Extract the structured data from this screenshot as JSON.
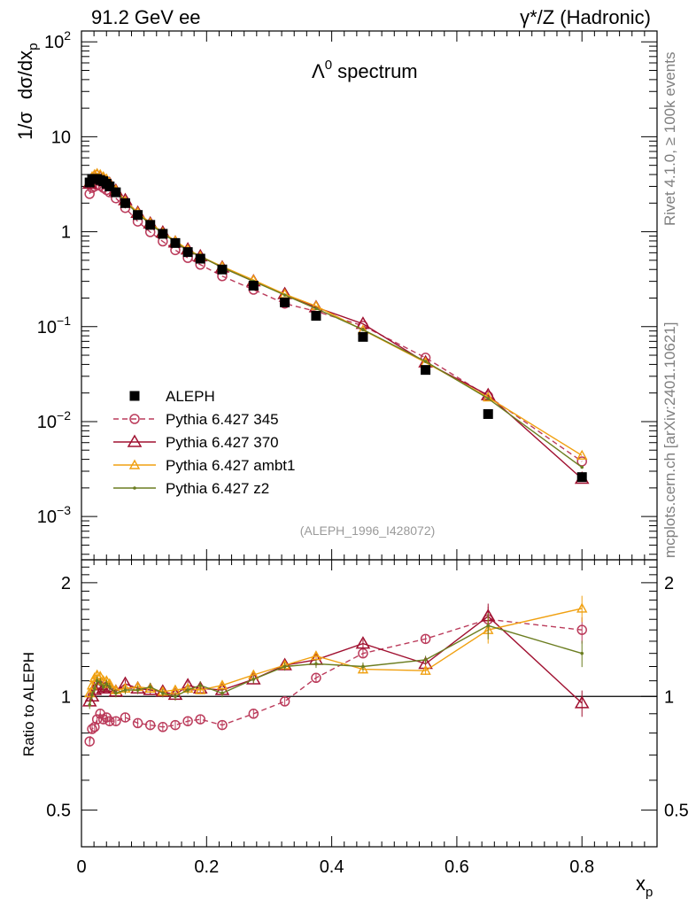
{
  "header": {
    "left": "91.2 GeV ee",
    "right": "γ*/Z (Hadronic)"
  },
  "side": {
    "rivet": "Rivet 4.1.0, ≥ 100k events",
    "mcplots": "mcplots.cern.ch [arXiv:2401.10621]"
  },
  "chart_data": {
    "type": "scatter",
    "title": "Λ0 spectrum",
    "title_main": "Λ",
    "title_sup": "0",
    "title_rest": " spectrum",
    "ylabel_parts": [
      "1/σ",
      "dσ/dx",
      "p"
    ],
    "xlabel_main": "x",
    "xlabel_sub": "p",
    "ratio_ylabel": "Ratio to ALEPH",
    "analysis_id": "(ALEPH_1996_I428072)",
    "xlim": [
      0,
      0.92
    ],
    "ylim": [
      0.00035,
      130
    ],
    "ratio_ylim": [
      0.4,
      2.3
    ],
    "x_ticks": [
      {
        "v": 0,
        "l": "0"
      },
      {
        "v": 0.2,
        "l": "0.2"
      },
      {
        "v": 0.4,
        "l": "0.4"
      },
      {
        "v": 0.6,
        "l": "0.6"
      },
      {
        "v": 0.8,
        "l": "0.8"
      }
    ],
    "y_ticks": [
      {
        "v": 0.001,
        "m": "10",
        "e": "−3"
      },
      {
        "v": 0.01,
        "m": "10",
        "e": "−2"
      },
      {
        "v": 0.1,
        "m": "10",
        "e": "−1"
      },
      {
        "v": 1,
        "m": "1",
        "e": ""
      },
      {
        "v": 10,
        "m": "10",
        "e": ""
      },
      {
        "v": 100,
        "m": "10",
        "e": "2"
      }
    ],
    "ratio_ticks": [
      {
        "v": 0.5,
        "l": "0.5"
      },
      {
        "v": 1,
        "l": "1"
      },
      {
        "v": 2,
        "l": "2"
      }
    ],
    "x": [
      0.013,
      0.017,
      0.021,
      0.025,
      0.03,
      0.035,
      0.04,
      0.045,
      0.055,
      0.07,
      0.09,
      0.11,
      0.13,
      0.15,
      0.17,
      0.19,
      0.225,
      0.275,
      0.325,
      0.375,
      0.45,
      0.55,
      0.65,
      0.8
    ],
    "series": [
      {
        "name": "ALEPH",
        "color": "#000000",
        "marker": "square",
        "dash": "",
        "values": [
          3.3,
          3.6,
          3.6,
          3.6,
          3.5,
          3.4,
          3.2,
          3.0,
          2.6,
          2.0,
          1.5,
          1.18,
          0.95,
          0.76,
          0.61,
          0.52,
          0.4,
          0.27,
          0.18,
          0.13,
          0.078,
          0.035,
          0.012,
          0.0026
        ],
        "ratio": null
      },
      {
        "name": "Pythia 6.427 345",
        "color": "#bb3b5b",
        "marker": "circle-open",
        "dash": "6,4",
        "values": [
          2.5,
          2.9,
          3.0,
          3.1,
          3.05,
          2.9,
          2.75,
          2.6,
          2.25,
          1.78,
          1.28,
          0.99,
          0.79,
          0.64,
          0.53,
          0.45,
          0.34,
          0.245,
          0.175,
          0.145,
          0.102,
          0.047,
          0.0185,
          0.0038
        ],
        "ratio": [
          0.76,
          0.82,
          0.83,
          0.87,
          0.9,
          0.87,
          0.88,
          0.86,
          0.86,
          0.88,
          0.85,
          0.84,
          0.83,
          0.84,
          0.86,
          0.87,
          0.84,
          0.9,
          0.97,
          1.12,
          1.3,
          1.42,
          1.6,
          1.5
        ]
      },
      {
        "name": "Pythia 6.427 370",
        "color": "#a01030",
        "marker": "triangle-open",
        "dash": "",
        "values": [
          3.2,
          3.6,
          3.8,
          3.9,
          3.75,
          3.6,
          3.4,
          3.2,
          2.7,
          2.15,
          1.58,
          1.22,
          0.98,
          0.77,
          0.65,
          0.55,
          0.42,
          0.3,
          0.22,
          0.16,
          0.107,
          0.042,
          0.019,
          0.0025
        ],
        "ratio": [
          0.97,
          1.0,
          1.04,
          1.08,
          1.07,
          1.05,
          1.06,
          1.05,
          1.03,
          1.08,
          1.05,
          1.04,
          1.03,
          1.01,
          1.07,
          1.05,
          1.04,
          1.11,
          1.21,
          1.25,
          1.38,
          1.22,
          1.63,
          0.96
        ]
      },
      {
        "name": "Pythia 6.427 ambt1",
        "color": "#f0a010",
        "marker": "triangle-open-small",
        "dash": "",
        "values": [
          3.4,
          3.8,
          4.0,
          4.1,
          4.0,
          3.8,
          3.6,
          3.3,
          2.75,
          2.1,
          1.6,
          1.24,
          0.98,
          0.8,
          0.65,
          0.55,
          0.43,
          0.31,
          0.22,
          0.165,
          0.092,
          0.042,
          0.018,
          0.0044
        ],
        "ratio": [
          1.02,
          1.07,
          1.12,
          1.14,
          1.13,
          1.1,
          1.1,
          1.08,
          1.04,
          1.05,
          1.06,
          1.05,
          1.03,
          1.04,
          1.05,
          1.04,
          1.07,
          1.14,
          1.21,
          1.28,
          1.18,
          1.17,
          1.5,
          1.71
        ]
      },
      {
        "name": "Pythia 6.427 z2",
        "color": "#6b7d20",
        "marker": "dot",
        "dash": "",
        "values": [
          3.2,
          3.6,
          3.7,
          3.85,
          3.7,
          3.55,
          3.4,
          3.2,
          2.7,
          2.05,
          1.55,
          1.2,
          0.96,
          0.78,
          0.63,
          0.55,
          0.42,
          0.3,
          0.215,
          0.155,
          0.093,
          0.043,
          0.0175,
          0.0033
        ],
        "ratio": [
          0.95,
          1.01,
          1.05,
          1.1,
          1.09,
          1.06,
          1.08,
          1.06,
          1.02,
          1.04,
          1.04,
          1.06,
          1.02,
          1.0,
          1.04,
          1.07,
          1.02,
          1.11,
          1.2,
          1.22,
          1.2,
          1.25,
          1.54,
          1.3
        ]
      }
    ]
  }
}
